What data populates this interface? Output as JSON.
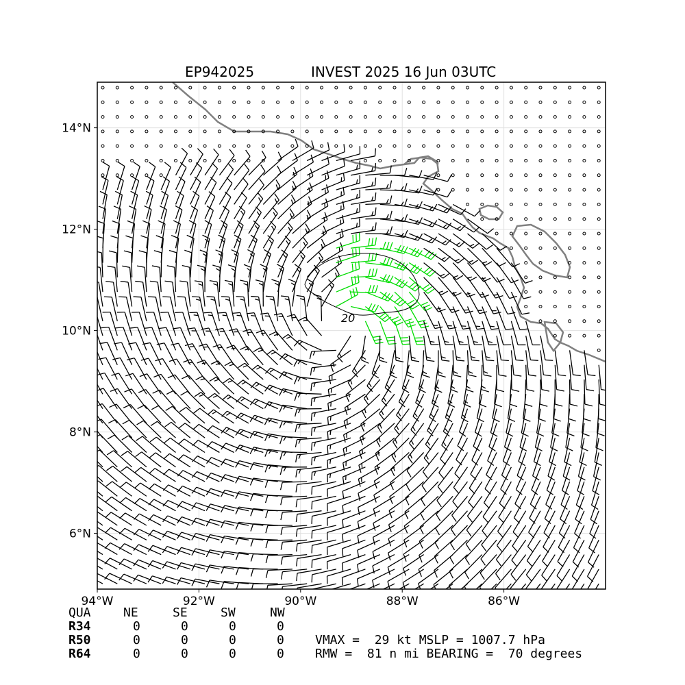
{
  "title": {
    "storm_id": "EP942025",
    "storm_info": "INVEST 2025 16 Jun 03UTC"
  },
  "axes": {
    "lon_range": [
      -94,
      -84
    ],
    "lat_range": [
      4.9,
      14.9
    ],
    "x_ticks": [
      {
        "value": -94,
        "label": "94°W"
      },
      {
        "value": -92,
        "label": "92°W"
      },
      {
        "value": -90,
        "label": "90°W"
      },
      {
        "value": -88,
        "label": "88°W"
      },
      {
        "value": -86,
        "label": "86°W"
      }
    ],
    "y_ticks": [
      {
        "value": 6,
        "label": "6°N"
      },
      {
        "value": 8,
        "label": "8°N"
      },
      {
        "value": 10,
        "label": "10°N"
      },
      {
        "value": 12,
        "label": "12°N"
      },
      {
        "value": 14,
        "label": "14°N"
      }
    ],
    "grid": true
  },
  "wind_field": {
    "center": {
      "lon": -89.2,
      "lat": 10.1
    },
    "rmw_nmi": 81,
    "barb_color": "#000000",
    "highlight_color": "#00dd00",
    "land_color": "#808080",
    "contour_label": "20"
  },
  "radii_table": {
    "headers": [
      "QUA",
      "NE",
      "SE",
      "SW",
      "NW"
    ],
    "rows": [
      {
        "label": "R34",
        "values": [
          "0",
          "0",
          "0",
          "0"
        ]
      },
      {
        "label": "R50",
        "values": [
          "0",
          "0",
          "0",
          "0"
        ]
      },
      {
        "label": "R64",
        "values": [
          "0",
          "0",
          "0",
          "0"
        ]
      }
    ]
  },
  "summary": {
    "line1": "VMAX =  29 kt MSLP = 1007.7 hPa",
    "line2": "RMW =  81 n mi BEARING =  70 degrees"
  }
}
